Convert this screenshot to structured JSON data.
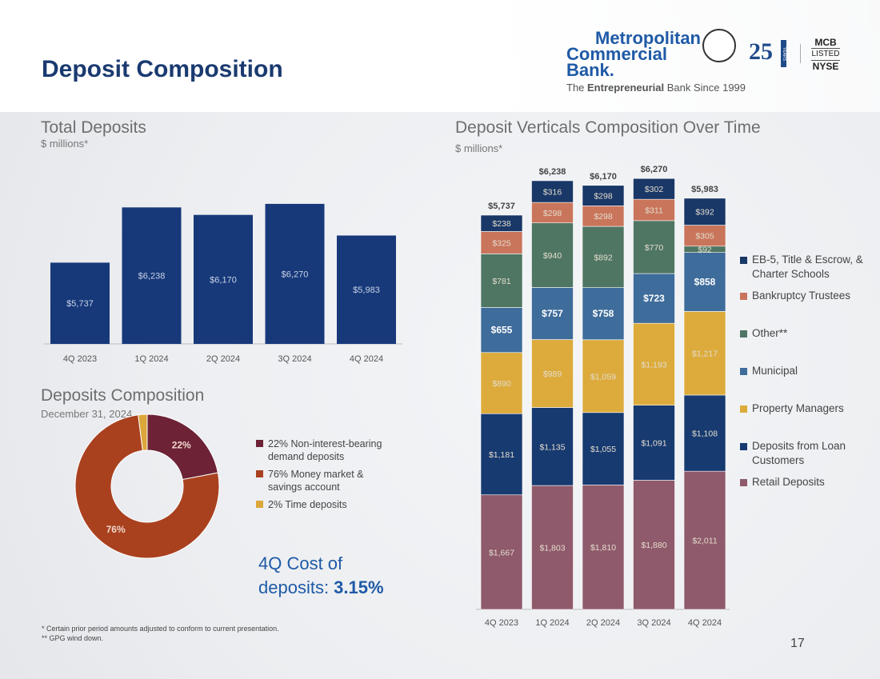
{
  "header": {
    "title": "Deposit Composition",
    "logo": {
      "line1": "Metropolitan",
      "line2": "Commercial Bank.",
      "tagline_pre": "The ",
      "tagline_bold": "Entrepreneurial",
      "tagline_post": " Bank Since 1999",
      "anniversary": "25",
      "anniversary_word": "YEARS",
      "listing": [
        "MCB",
        "LISTED",
        "NYSE"
      ]
    }
  },
  "chart_data": [
    {
      "type": "bar",
      "title": "Total Deposits",
      "subtitle": "$ millions*",
      "categories": [
        "4Q 2023",
        "1Q 2024",
        "2Q 2024",
        "3Q 2024",
        "4Q 2024"
      ],
      "values": [
        5737,
        6238,
        6170,
        6270,
        5983
      ],
      "labels": [
        "$5,737",
        "$6,238",
        "$6,170",
        "$6,270",
        "$5,983"
      ],
      "color": "#17397a",
      "ylim": [
        5000,
        6400
      ]
    },
    {
      "type": "bar",
      "stacked": true,
      "title": "Deposit Verticals Composition Over Time",
      "subtitle": "$ millions*",
      "categories": [
        "4Q 2023",
        "1Q 2024",
        "2Q 2024",
        "3Q 2024",
        "4Q 2024"
      ],
      "totals": [
        "$5,737",
        "$6,238",
        "$6,170",
        "$6,270",
        "$5,983"
      ],
      "ylim": [
        0,
        6300
      ],
      "legend": "right",
      "series": [
        {
          "name": "Retail Deposits",
          "color": "#8f5a6b",
          "values": [
            1667,
            1803,
            1810,
            1880,
            2011
          ],
          "bold": false
        },
        {
          "name": "Deposits from Loan Customers",
          "color": "#173a70",
          "values": [
            1181,
            1135,
            1055,
            1091,
            1108
          ],
          "bold": false
        },
        {
          "name": "Property Managers",
          "color": "#dcab3c",
          "values": [
            890,
            989,
            1059,
            1193,
            1217
          ],
          "bold": false
        },
        {
          "name": "Municipal",
          "color": "#3e6c9b",
          "values": [
            655,
            757,
            758,
            723,
            858
          ],
          "bold": true
        },
        {
          "name": "Other**",
          "color": "#4f7663",
          "values": [
            781,
            940,
            892,
            770,
            92
          ],
          "bold": false
        },
        {
          "name": "Bankruptcy Trustees",
          "color": "#c9755b",
          "values": [
            325,
            298,
            298,
            311,
            305
          ],
          "bold": false
        },
        {
          "name": "EB-5, Title & Escrow, & Charter Schools",
          "color": "#193767",
          "values": [
            238,
            316,
            298,
            302,
            392
          ],
          "bold": false
        }
      ]
    },
    {
      "type": "pie",
      "donut": true,
      "title": "Deposits Composition",
      "subtitle": "December 31, 2024",
      "slices": [
        {
          "name": "22% Non-interest-bearing demand deposits",
          "value": 22,
          "color": "#6d2236",
          "label": "22%"
        },
        {
          "name": "76% Money market & savings account",
          "value": 76,
          "color": "#a9411f",
          "label": "76%"
        },
        {
          "name": "2% Time deposits",
          "value": 2,
          "color": "#dca73a",
          "label": ""
        }
      ]
    }
  ],
  "callout": {
    "line1": "4Q Cost of",
    "line2": "deposits: ",
    "value": "3.15%"
  },
  "footnotes": [
    "*   Certain prior period amounts adjusted to conform to current presentation.",
    "**  GPG wind down."
  ],
  "page_number": "17"
}
